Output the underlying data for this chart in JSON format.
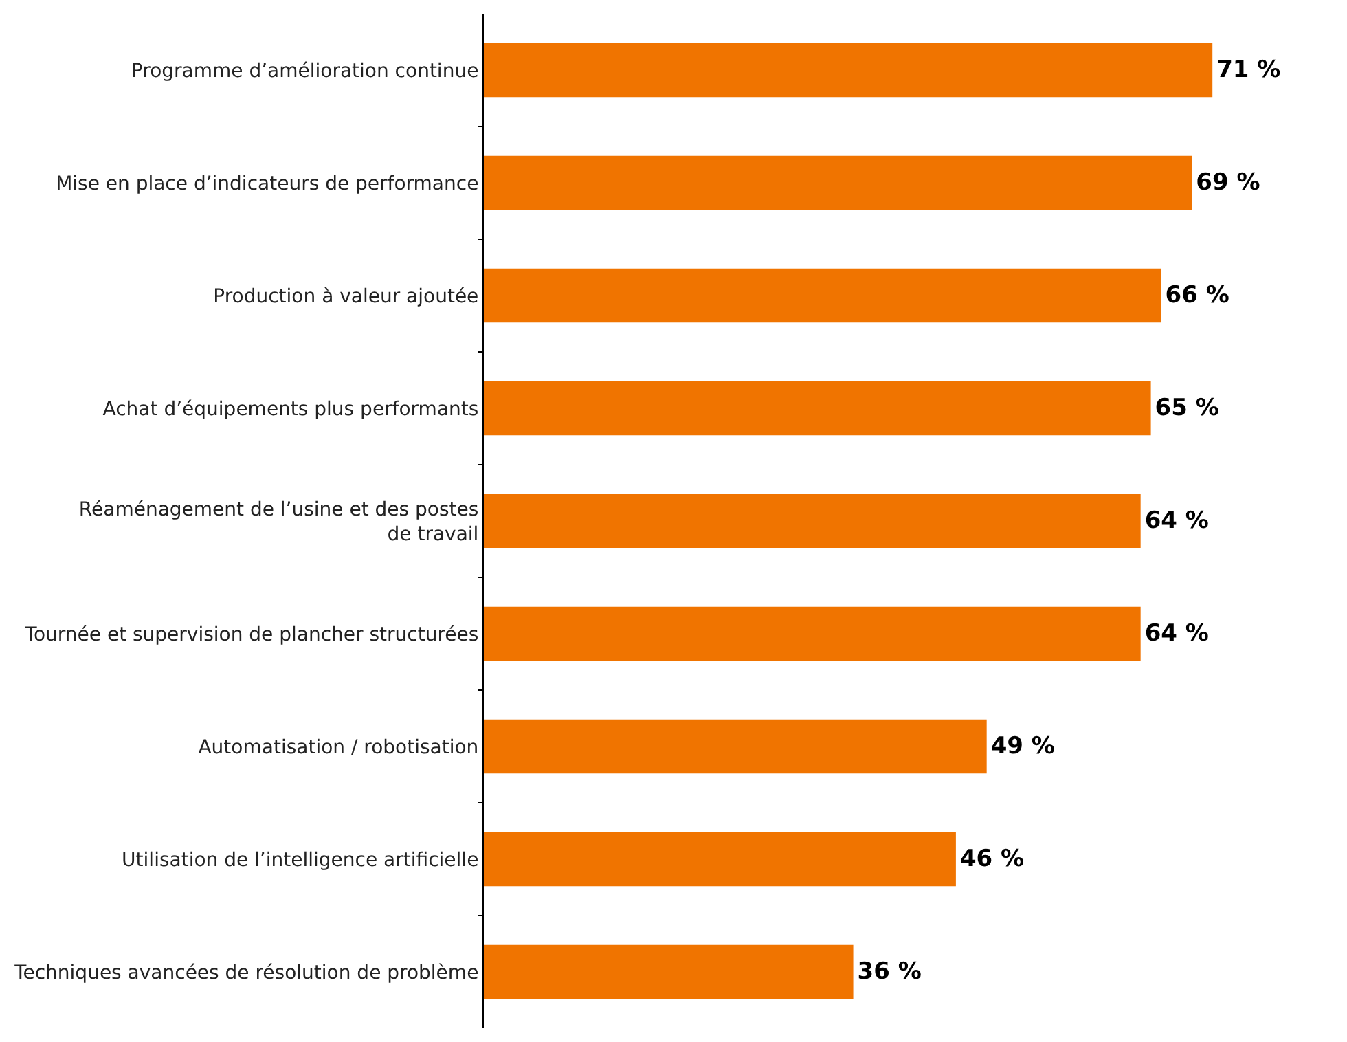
{
  "chart_data": {
    "type": "bar",
    "orientation": "horizontal",
    "categories": [
      "Programme d’amélioration continue",
      "Mise en place d’indicateurs de performance",
      "Production à valeur ajoutée",
      "Achat d’équipements plus performants",
      "Réaménagement de l’usine et des postes de travail",
      "Tournée et supervision de plancher structurées",
      "Automatisation / robotisation",
      "Utilisation de l’intelligence artificielle",
      "Techniques avancées de résolution de problème"
    ],
    "values": [
      71,
      69,
      66,
      65,
      64,
      64,
      49,
      46,
      36
    ],
    "value_labels": [
      "71 %",
      "69 %",
      "66 %",
      "65 %",
      "64 %",
      "64 %",
      "49 %",
      "46 %",
      "36 %"
    ],
    "color": "#f07400",
    "tick_labels": "y"
  }
}
